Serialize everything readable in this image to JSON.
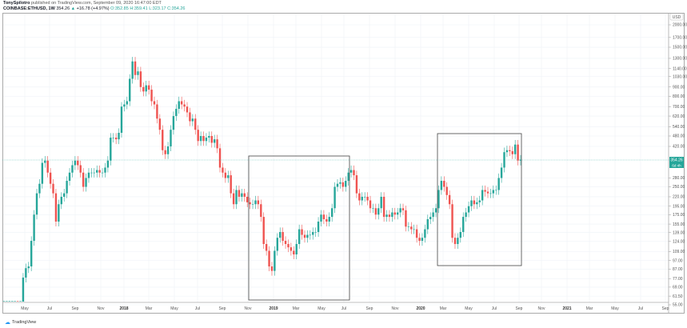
{
  "header": {
    "author": "TonySpilotro",
    "published": "published on TradingView.com, September 09, 2020 16:47:00 EDT",
    "symbol": "COINBASE:ETHUSD, 1W",
    "last": "354.26",
    "change": "+16.78 (+4.97%)",
    "open": "O:352.85",
    "high": "H:359.41",
    "low": "L:323.17",
    "close": "C:354.26"
  },
  "currency": "USD",
  "price_label": "354.26",
  "countdown_label": "6d 4h",
  "footer": {
    "brand": "TradingView"
  },
  "colors": {
    "up": "#26a69a",
    "down": "#ef5350",
    "price_tag": "#26a69a"
  },
  "chart_data": {
    "type": "candlestick",
    "scale": "log",
    "interval": "1W",
    "ylim": [
      55,
      2100
    ],
    "grid": true,
    "y_ticks": [
      "2000.00",
      "1700.00",
      "1500.00",
      "1300.00",
      "1140.00",
      "1030.00",
      "900.00",
      "800.00",
      "700.00",
      "620.00",
      "540.00",
      "480.00",
      "420.00",
      "280.00",
      "250.00",
      "220.00",
      "195.00",
      "175.00",
      "155.00",
      "139.00",
      "124.00",
      "109.00",
      "97.00",
      "87.00",
      "77.00",
      "69.00",
      "61.50",
      "55.00"
    ],
    "x_ticks": [
      "May",
      "Jul",
      "Sep",
      "Nov",
      "2018",
      "Mar",
      "May",
      "Jul",
      "Sep",
      "Nov",
      "2019",
      "Mar",
      "May",
      "Jul",
      "Sep",
      "Nov",
      "2020",
      "Mar",
      "May",
      "Jul",
      "Sep",
      "Nov",
      "2021",
      "Mar",
      "May",
      "Jul",
      "Sep"
    ],
    "first_open": 15,
    "weekly_closes": [
      17,
      19,
      28,
      43,
      50,
      48,
      48,
      78,
      88,
      90,
      125,
      175,
      230,
      260,
      340,
      350,
      300,
      260,
      230,
      160,
      200,
      220,
      230,
      270,
      300,
      330,
      350,
      330,
      300,
      250,
      280,
      300,
      300,
      300,
      310,
      300,
      300,
      320,
      350,
      470,
      470,
      460,
      500,
      700,
      720,
      750,
      1000,
      1250,
      1050,
      1100,
      900,
      850,
      920,
      870,
      750,
      720,
      600,
      520,
      400,
      380,
      420,
      520,
      620,
      680,
      750,
      720,
      700,
      650,
      580,
      600,
      520,
      450,
      480,
      450,
      470,
      480,
      440,
      460,
      410,
      320,
      300,
      280,
      290,
      230,
      200,
      240,
      220,
      230,
      220,
      205,
      200,
      200,
      210,
      200,
      170,
      120,
      110,
      90,
      85,
      110,
      130,
      140,
      125,
      120,
      115,
      110,
      105,
      120,
      145,
      135,
      130,
      135,
      135,
      140,
      140,
      160,
      175,
      165,
      160,
      170,
      190,
      250,
      260,
      265,
      250,
      270,
      300,
      310,
      290,
      230,
      210,
      220,
      220,
      210,
      190,
      190,
      175,
      190,
      220,
      170,
      175,
      170,
      180,
      175,
      180,
      190,
      185,
      150,
      150,
      145,
      145,
      130,
      125,
      130,
      145,
      165,
      170,
      180,
      190,
      240,
      270,
      250,
      225,
      200,
      130,
      120,
      130,
      140,
      170,
      180,
      195,
      210,
      200,
      205,
      210,
      240,
      235,
      230,
      230,
      240,
      240,
      280,
      320,
      390,
      400,
      395,
      380,
      430,
      350,
      354.26
    ]
  }
}
